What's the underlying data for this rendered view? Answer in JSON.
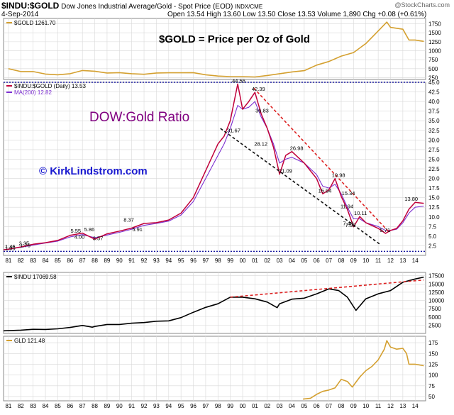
{
  "header": {
    "symbol": "$INDU:$GOLD",
    "description": "Dow Jones Industrial Average/Gold - Spot Price (EOD)",
    "exchange": "INDX/CME",
    "watermark": "@StockCharts.com",
    "date": "4-Sep-2014",
    "quote": {
      "open_label": "Open",
      "open": "13.54",
      "high_label": "High",
      "high": "13.60",
      "low_label": "Low",
      "low": "13.50",
      "close_label": "Close",
      "close": "13.53",
      "volume_label": "Volume",
      "volume": "1,890",
      "chg_label": "Chg",
      "chg": "+0.08 (+0.61%)"
    }
  },
  "annotations": {
    "gold_title": "$GOLD = Price per Oz of Gold",
    "ratio_title": "DOW:Gold Ratio",
    "copyright": "© KirkLindstrom.com"
  },
  "colors": {
    "gold_line": "#d4a030",
    "ratio_line": "#c0003a",
    "ma_line": "#7c2fd0",
    "dow_line": "#000000",
    "dashed_red": "#dd2222",
    "dashed_black": "#111111",
    "dotted_blue": "#1a1aa0",
    "ratio_title_color": "#800080",
    "copyright_color": "#1a1ad0",
    "grid": "#d8d8d8"
  },
  "chart_data": [
    {
      "type": "line",
      "panel": "gold",
      "legend": "$GOLD 1261.70",
      "x": [
        1981,
        1982,
        1983,
        1984,
        1985,
        1986,
        1987,
        1988,
        1989,
        1990,
        1991,
        1992,
        1993,
        1994,
        1995,
        1996,
        1997,
        1998,
        1999,
        2000,
        2001,
        2002,
        2003,
        2004,
        2005,
        2006,
        2007,
        2008,
        2009,
        2010,
        2011,
        2011.7,
        2012,
        2013,
        2013.5,
        2014,
        2014.7
      ],
      "series": [
        {
          "values": [
            500,
            420,
            420,
            350,
            330,
            360,
            450,
            430,
            380,
            390,
            360,
            345,
            380,
            385,
            385,
            390,
            330,
            295,
            280,
            280,
            270,
            310,
            360,
            410,
            445,
            600,
            700,
            850,
            950,
            1200,
            1550,
            1800,
            1650,
            1600,
            1300,
            1300,
            1262
          ]
        }
      ],
      "ylim": [
        200,
        1900
      ],
      "yticks": [
        250,
        500,
        750,
        1000,
        1250,
        1500,
        1750
      ]
    },
    {
      "type": "line",
      "panel": "ratio",
      "legend": "$INDU:$GOLD (Daily) 13.53",
      "ma_legend": "MA(200) 12.82",
      "x": [
        1980.6,
        1981,
        1982,
        1983,
        1984,
        1985,
        1986,
        1987,
        1988,
        1989,
        1990,
        1991,
        1992,
        1993,
        1994,
        1995,
        1996,
        1997,
        1998,
        1998.5,
        1999,
        1999.6,
        2000,
        2000.5,
        2001,
        2001.5,
        2002,
        2002.5,
        2003,
        2003.5,
        2004,
        2005,
        2006,
        2006.5,
        2007,
        2007.5,
        2008,
        2008.5,
        2009,
        2009.5,
        2010,
        2011,
        2011.6,
        2012,
        2012.5,
        2013,
        2013.5,
        2014,
        2014.7
      ],
      "series": [
        {
          "values": [
            1.46,
            1.6,
            2.2,
            2.9,
            3.3,
            3.9,
            5.2,
            5.8,
            4.2,
            5.6,
            6.3,
            7.1,
            8.3,
            8.5,
            9.2,
            11,
            15,
            22,
            29,
            31,
            35,
            44.56,
            38,
            40,
            42.39,
            36.83,
            33,
            28.12,
            21.09,
            26,
            26.98,
            24,
            20,
            16,
            17,
            19.98,
            15.34,
            11.94,
            7.43,
            10.11,
            8.5,
            7.03,
            5.71,
            6.5,
            7,
            9,
            12,
            13.8,
            13.53
          ]
        },
        {
          "values": [
            1.5,
            1.6,
            2.1,
            2.7,
            3.2,
            3.7,
            4.8,
            5.4,
            4.6,
            5.3,
            6,
            6.8,
            7.8,
            8.3,
            8.9,
            10.5,
            14,
            20,
            26,
            29,
            33,
            39,
            38,
            38.5,
            40,
            36,
            33,
            29,
            24,
            25,
            25.5,
            24,
            21,
            18,
            17.5,
            18.5,
            16,
            12.5,
            9.5,
            9.5,
            8.5,
            7.5,
            6.5,
            6.5,
            6.8,
            8.5,
            11,
            12.5,
            12.82
          ]
        }
      ],
      "ylim": [
        0,
        45
      ],
      "yticks": [
        2.5,
        5,
        7.5,
        10,
        12.5,
        15,
        17.5,
        20,
        22.5,
        25,
        27.5,
        30,
        32.5,
        35,
        37.5,
        40,
        42.5,
        45
      ],
      "ytick_labels": [
        "2.5",
        "5.0",
        "7.5",
        "10.0",
        "12.5",
        "15.0",
        "17.5",
        "20.0",
        "22.5",
        "25.0",
        "27.5",
        "30.0",
        "32.5",
        "35.0",
        "37.5",
        "40.0",
        "42.5",
        "45.0"
      ],
      "levels": [
        1.05,
        45
      ],
      "data_labels": [
        {
          "x": 1980.6,
          "y": 1.46,
          "text": "1.46"
        },
        {
          "x": 1980.6,
          "y": 1.05,
          "text": "1.05"
        },
        {
          "x": 1982.3,
          "y": 2.35,
          "text": "2.35"
        },
        {
          "x": 1982.4,
          "y": 1.76,
          "text": "1.76"
        },
        {
          "x": 1986.5,
          "y": 5.55,
          "text": "5.55"
        },
        {
          "x": 1987.6,
          "y": 5.86,
          "text": "5.86"
        },
        {
          "x": 1986.8,
          "y": 4.0,
          "text": "4.00"
        },
        {
          "x": 1988.3,
          "y": 3.57,
          "text": "3.57"
        },
        {
          "x": 1990.8,
          "y": 8.37,
          "text": "8.37"
        },
        {
          "x": 1991.5,
          "y": 5.91,
          "text": "5.91"
        },
        {
          "x": 1999.6,
          "y": 44.56,
          "text": "44.56"
        },
        {
          "x": 2001.2,
          "y": 42.39,
          "text": "42.39"
        },
        {
          "x": 2001.5,
          "y": 36.83,
          "text": "36.83"
        },
        {
          "x": 1999.2,
          "y": 31.67,
          "text": "31.67"
        },
        {
          "x": 2001.4,
          "y": 28.12,
          "text": "28.12"
        },
        {
          "x": 2004.3,
          "y": 26.98,
          "text": "26.98"
        },
        {
          "x": 2003.4,
          "y": 21.09,
          "text": "21.09"
        },
        {
          "x": 2007.7,
          "y": 19.98,
          "text": "19.98"
        },
        {
          "x": 2008.5,
          "y": 15.34,
          "text": "15.34"
        },
        {
          "x": 2006.6,
          "y": 15.94,
          "text": "15.94"
        },
        {
          "x": 2009.5,
          "y": 10.11,
          "text": "10.11"
        },
        {
          "x": 2008.4,
          "y": 11.94,
          "text": "11.94"
        },
        {
          "x": 2008.6,
          "y": 7.43,
          "text": "7.43"
        },
        {
          "x": 2008.8,
          "y": 7.03,
          "text": "7.03"
        },
        {
          "x": 2011.6,
          "y": 5.71,
          "text": "5.71"
        },
        {
          "x": 2013.6,
          "y": 13.8,
          "text": "13.80"
        }
      ],
      "trendlines": [
        {
          "style": "dashed-red",
          "from": [
            2000.9,
            43.5
          ],
          "to": [
            2011.9,
            6.0
          ]
        },
        {
          "style": "dashed-black",
          "from": [
            1998.2,
            33
          ],
          "to": [
            2011.1,
            3.0
          ]
        }
      ]
    },
    {
      "type": "line",
      "panel": "dow",
      "legend": "$INDU 17069.58",
      "x": [
        1980.6,
        1982,
        1983,
        1984,
        1985,
        1986,
        1987,
        1987.8,
        1988,
        1989,
        1990,
        1991,
        1992,
        1993,
        1994,
        1995,
        1996,
        1997,
        1998,
        1999,
        2000,
        2001,
        2002,
        2002.8,
        2003,
        2004,
        2005,
        2006,
        2007,
        2007.8,
        2008.5,
        2009.2,
        2010,
        2011,
        2012,
        2013,
        2014,
        2014.7
      ],
      "series": [
        {
          "values": [
            800,
            1000,
            1250,
            1200,
            1400,
            1800,
            2400,
            1900,
            2100,
            2700,
            2700,
            3100,
            3300,
            3700,
            3800,
            4800,
            6400,
            7900,
            9000,
            11000,
            11000,
            10500,
            9500,
            7800,
            9000,
            10400,
            10700,
            12000,
            13500,
            13000,
            11000,
            7000,
            10500,
            12000,
            13000,
            15500,
            16500,
            17070
          ]
        }
      ],
      "ylim": [
        0,
        18500
      ],
      "yticks": [
        2500,
        5000,
        7500,
        10000,
        12500,
        15000,
        17500
      ],
      "trendlines": [
        {
          "style": "dashed-red",
          "from": [
            1999.0,
            11000
          ],
          "to": [
            2014.7,
            16200
          ]
        }
      ]
    },
    {
      "type": "line",
      "panel": "gld",
      "legend": "GLD 121.48",
      "x": [
        2004.9,
        2005.5,
        2006,
        2006.5,
        2007,
        2007.5,
        2008,
        2008.5,
        2008.9,
        2009.5,
        2010,
        2010.5,
        2011,
        2011.5,
        2011.7,
        2012,
        2012.5,
        2013,
        2013.3,
        2013.5,
        2014,
        2014.7
      ],
      "series": [
        {
          "values": [
            44,
            46,
            55,
            62,
            65,
            70,
            90,
            85,
            72,
            95,
            110,
            120,
            135,
            160,
            180,
            165,
            160,
            162,
            150,
            125,
            125,
            121.48
          ]
        }
      ],
      "ylim": [
        40,
        190
      ],
      "yticks": [
        50,
        75,
        100,
        125,
        150,
        175
      ]
    }
  ],
  "x_axis": {
    "tick_labels": [
      "81",
      "82",
      "83",
      "84",
      "85",
      "86",
      "87",
      "88",
      "89",
      "90",
      "91",
      "92",
      "93",
      "94",
      "95",
      "96",
      "97",
      "98",
      "99",
      "00",
      "01",
      "02",
      "03",
      "04",
      "05",
      "06",
      "07",
      "08",
      "09",
      "10",
      "11",
      "12",
      "13",
      "14"
    ]
  }
}
